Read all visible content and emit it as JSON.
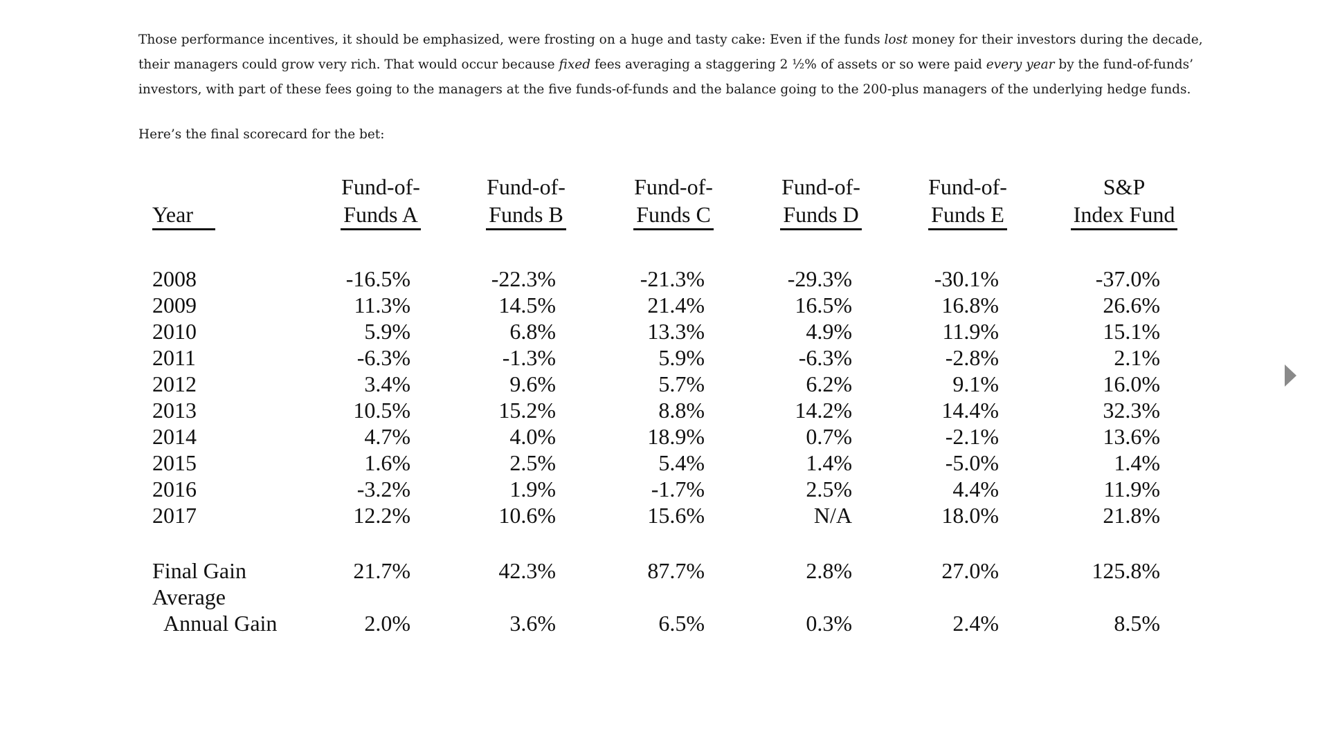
{
  "article": {
    "paragraph1": {
      "t1": "Those performance incentives, it should be emphasized, were frosting on a huge and tasty cake: Even if the funds ",
      "i1": "lost",
      "t2": " money for their investors during the decade, their managers could grow very rich. That would occur because ",
      "i2": "fixed",
      "t3": " fees averaging a staggering 2 ½% of assets or so were paid ",
      "i3": "every year",
      "t4": " by the fund-of-funds’ investors, with part of these fees going to the managers at the five funds-of-funds and the balance going to the 200-plus managers of the underlying hedge funds."
    },
    "paragraph2": "Here’s the final scorecard for the bet:"
  },
  "chart_data": {
    "type": "table",
    "columns": [
      {
        "line1": "",
        "line2": "Year"
      },
      {
        "line1": "Fund-of-",
        "line2": "Funds A"
      },
      {
        "line1": "Fund-of-",
        "line2": "Funds B"
      },
      {
        "line1": "Fund-of-",
        "line2": "Funds C"
      },
      {
        "line1": "Fund-of-",
        "line2": "Funds D"
      },
      {
        "line1": "Fund-of-",
        "line2": "Funds E"
      },
      {
        "line1": "S&P",
        "line2": "Index Fund"
      }
    ],
    "rows": [
      {
        "year": "2008",
        "values": [
          "-16.5%",
          "-22.3%",
          "-21.3%",
          "-29.3%",
          "-30.1%",
          "-37.0%"
        ]
      },
      {
        "year": "2009",
        "values": [
          "11.3%",
          "14.5%",
          "21.4%",
          "16.5%",
          "16.8%",
          "26.6%"
        ]
      },
      {
        "year": "2010",
        "values": [
          "5.9%",
          "6.8%",
          "13.3%",
          "4.9%",
          "11.9%",
          "15.1%"
        ]
      },
      {
        "year": "2011",
        "values": [
          "-6.3%",
          "-1.3%",
          "5.9%",
          "-6.3%",
          "-2.8%",
          "2.1%"
        ]
      },
      {
        "year": "2012",
        "values": [
          "3.4%",
          "9.6%",
          "5.7%",
          "6.2%",
          "9.1%",
          "16.0%"
        ]
      },
      {
        "year": "2013",
        "values": [
          "10.5%",
          "15.2%",
          "8.8%",
          "14.2%",
          "14.4%",
          "32.3%"
        ]
      },
      {
        "year": "2014",
        "values": [
          "4.7%",
          "4.0%",
          "18.9%",
          "0.7%",
          "-2.1%",
          "13.6%"
        ]
      },
      {
        "year": "2015",
        "values": [
          "1.6%",
          "2.5%",
          "5.4%",
          "1.4%",
          "-5.0%",
          "1.4%"
        ]
      },
      {
        "year": "2016",
        "values": [
          "-3.2%",
          "1.9%",
          "-1.7%",
          "2.5%",
          "4.4%",
          "11.9%"
        ]
      },
      {
        "year": "2017",
        "values": [
          "12.2%",
          "10.6%",
          "15.6%",
          "N/A",
          "18.0%",
          "21.8%"
        ]
      }
    ],
    "summary": [
      {
        "label_lines": [
          "Final Gain"
        ],
        "values": [
          "21.7%",
          "42.3%",
          "87.7%",
          "2.8%",
          "27.0%",
          "125.8%"
        ]
      },
      {
        "label_lines": [
          "Average",
          "Annual Gain"
        ],
        "values": [
          "2.0%",
          "3.6%",
          "6.5%",
          "0.3%",
          "2.4%",
          "8.5%"
        ]
      }
    ]
  },
  "navigation": {
    "next_icon": "triangle-right-icon",
    "arrow_color": "#8a8a8a"
  }
}
